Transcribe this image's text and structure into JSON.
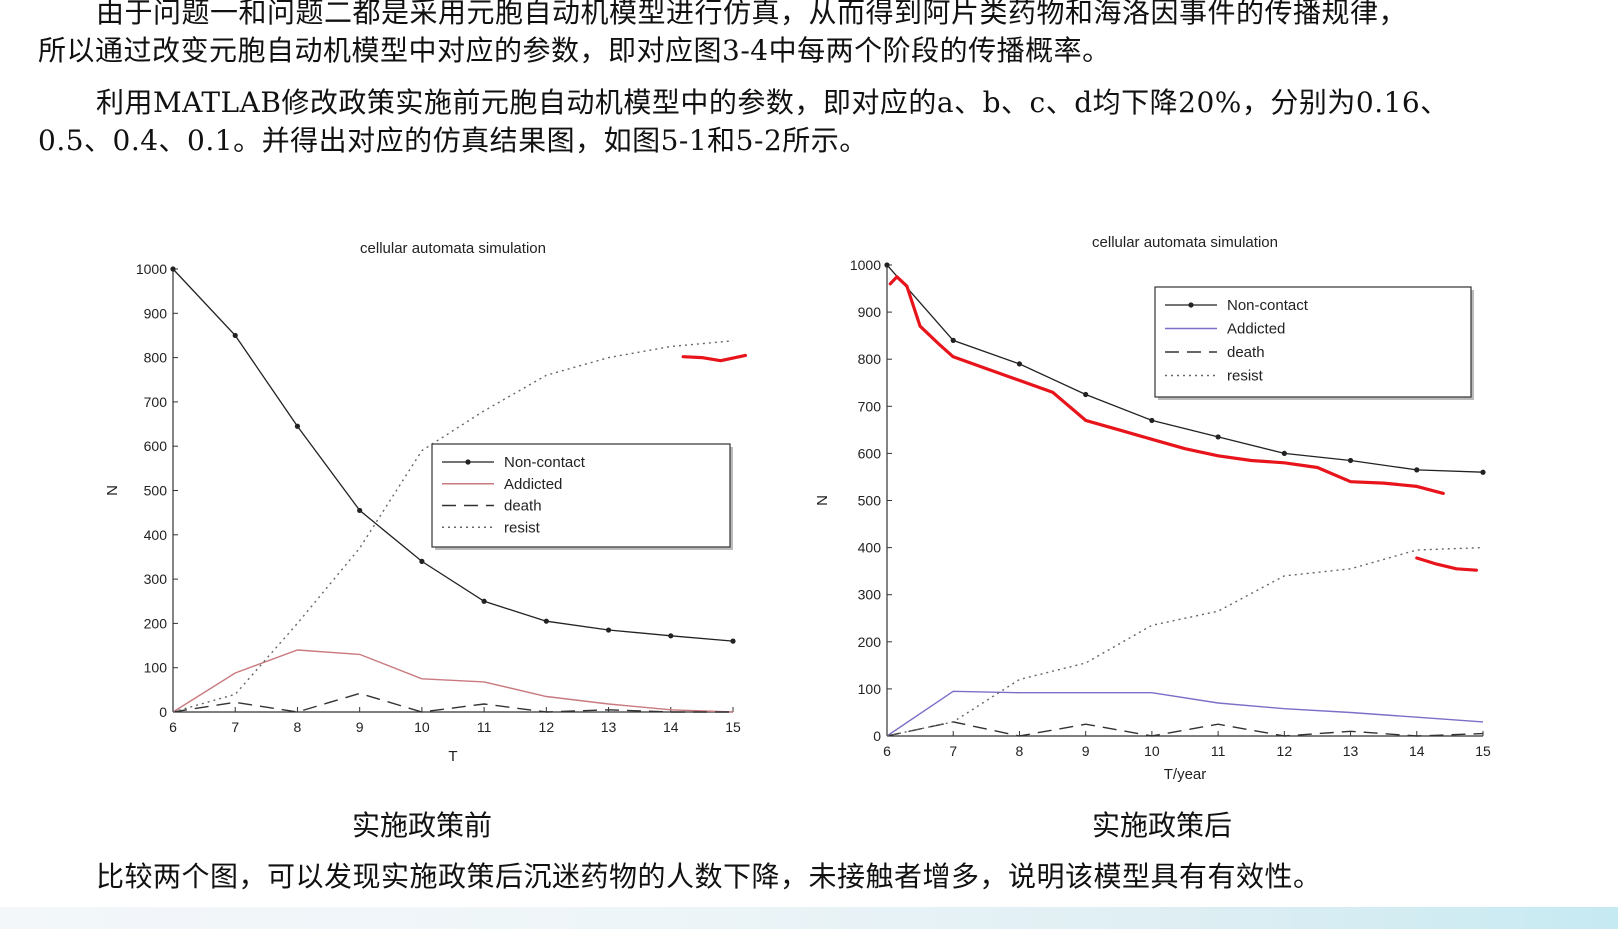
{
  "document": {
    "para1_line1": "由于问题一和问题二都是采用元胞自动机模型进行仿真，从而得到阿片类药物和海洛因事件的传播规律，",
    "para1_line2": "所以通过改变元胞自动机模型中对应的参数，即对应图3-4中每两个阶段的传播概率。",
    "para2_line1": "利用MATLAB修改政策实施前元胞自动机模型中的参数，即对应的a、b、c、d均下降20%，分别为0.16、",
    "para2_line2": "0.5、0.4、0.1。并得出对应的仿真结果图，如图5-1和5-2所示。",
    "caption_left": "实施政策前",
    "caption_right": "实施政策后",
    "conclusion": "比较两个图，可以发现实施政策后沉迷药物的人数下降，未接触者增多，说明该模型具有有效性。"
  },
  "colors": {
    "noncontact": "#222222",
    "addicted_left": "#c97a7f",
    "addicted_right": "#7a70c8",
    "death": "#333333",
    "resist": "#666666",
    "annotation": "#e8141b"
  },
  "chart_data": [
    {
      "type": "line",
      "title": "cellular automata simulation",
      "xlabel": "T",
      "ylabel": "N",
      "xlim": [
        6,
        15
      ],
      "ylim": [
        0,
        1000
      ],
      "xticks": [
        "6",
        "7",
        "8",
        "9",
        "10",
        "11",
        "12",
        "13",
        "14",
        "15"
      ],
      "yticks": [
        "0",
        "100",
        "200",
        "300",
        "400",
        "500",
        "600",
        "700",
        "800",
        "900",
        "1000"
      ],
      "legend_position": "center-right",
      "x": [
        6,
        7,
        8,
        9,
        10,
        11,
        12,
        13,
        14,
        15
      ],
      "series": [
        {
          "name": "Non-contact",
          "style": "solid-dots",
          "values": [
            1000,
            850,
            645,
            455,
            340,
            250,
            205,
            185,
            172,
            160
          ]
        },
        {
          "name": "Addicted",
          "style": "solid",
          "values": [
            0,
            88,
            140,
            130,
            75,
            68,
            35,
            18,
            5,
            0
          ]
        },
        {
          "name": "death",
          "style": "dashed",
          "values": [
            0,
            22,
            0,
            42,
            0,
            18,
            0,
            5,
            0,
            0
          ]
        },
        {
          "name": "resist",
          "style": "dotted",
          "values": [
            0,
            40,
            200,
            370,
            590,
            680,
            760,
            800,
            825,
            838
          ]
        }
      ],
      "annotations": [
        {
          "type": "hand-drawn-stroke",
          "points": [
            [
              14.2,
              802
            ],
            [
              14.5,
              800
            ],
            [
              14.8,
              793
            ],
            [
              15.2,
              805
            ]
          ]
        }
      ]
    },
    {
      "type": "line",
      "title": "cellular automata simulation",
      "xlabel": "T/year",
      "ylabel": "N",
      "xlim": [
        6,
        15
      ],
      "ylim": [
        0,
        1000
      ],
      "xticks": [
        "6",
        "7",
        "8",
        "9",
        "10",
        "11",
        "12",
        "13",
        "14",
        "15"
      ],
      "yticks": [
        "0",
        "100",
        "200",
        "300",
        "400",
        "500",
        "600",
        "700",
        "800",
        "900",
        "1000"
      ],
      "legend_position": "top-right",
      "x": [
        6,
        7,
        8,
        9,
        10,
        11,
        12,
        13,
        14,
        15
      ],
      "series": [
        {
          "name": "Non-contact",
          "style": "solid-dots",
          "values": [
            1000,
            840,
            790,
            725,
            670,
            635,
            600,
            585,
            565,
            560
          ]
        },
        {
          "name": "Addicted",
          "style": "solid",
          "values": [
            0,
            95,
            92,
            92,
            92,
            70,
            58,
            50,
            40,
            30
          ]
        },
        {
          "name": "death",
          "style": "dashed",
          "values": [
            0,
            30,
            0,
            25,
            0,
            25,
            0,
            10,
            0,
            5
          ]
        },
        {
          "name": "resist",
          "style": "dotted",
          "values": [
            0,
            30,
            120,
            155,
            235,
            265,
            340,
            355,
            395,
            400
          ]
        }
      ],
      "annotations": [
        {
          "type": "hand-drawn-stroke",
          "points": [
            [
              6.05,
              960
            ],
            [
              6.15,
              975
            ],
            [
              6.3,
              955
            ],
            [
              6.5,
              870
            ],
            [
              6.8,
              830
            ],
            [
              7.0,
              805
            ],
            [
              7.5,
              780
            ],
            [
              8.0,
              755
            ],
            [
              8.5,
              730
            ],
            [
              9.0,
              670
            ],
            [
              9.5,
              650
            ],
            [
              10.0,
              630
            ],
            [
              10.5,
              610
            ],
            [
              11.0,
              595
            ],
            [
              11.5,
              585
            ],
            [
              12.0,
              580
            ],
            [
              12.5,
              570
            ],
            [
              13.0,
              540
            ],
            [
              13.5,
              537
            ],
            [
              14.0,
              530
            ],
            [
              14.4,
              515
            ]
          ]
        },
        {
          "type": "hand-drawn-stroke",
          "points": [
            [
              14.0,
              378
            ],
            [
              14.3,
              365
            ],
            [
              14.6,
              355
            ],
            [
              14.9,
              352
            ]
          ]
        }
      ]
    }
  ]
}
